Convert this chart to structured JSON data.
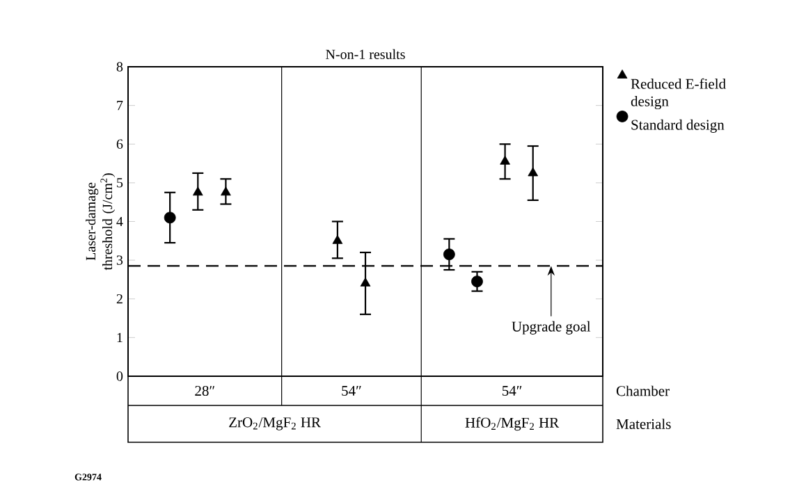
{
  "chart_data": {
    "type": "scatter",
    "title": "N-on-1 results",
    "ylabel": "Laser-damage threshold (J/cm$^{2}$)",
    "categories": [
      null,
      null,
      null,
      null,
      null,
      null,
      null,
      null,
      null,
      null,
      null,
      null,
      null,
      null,
      null,
      null,
      null
    ],
    "ylim": [
      0,
      8
    ],
    "yticks": [
      0,
      1,
      2,
      3,
      4,
      5,
      6,
      7,
      8
    ],
    "tick_labels": "y",
    "legend": "top right",
    "series": [
      {
        "name": "Reduced E-field design",
        "color": "#000000",
        "marker": "triangle",
        "values": [
          null,
          null,
          4.75,
          4.75,
          null,
          null,
          null,
          3.5,
          2.4,
          null,
          null,
          null,
          null,
          5.55,
          5.25,
          null,
          null
        ],
        "errors": [
          null,
          null,
          [
            4.3,
            5.25
          ],
          [
            4.45,
            5.1
          ],
          null,
          null,
          null,
          [
            3.05,
            4.0
          ],
          [
            1.6,
            3.2
          ],
          null,
          null,
          null,
          null,
          [
            5.1,
            6.0
          ],
          [
            4.55,
            5.95
          ],
          null,
          null
        ]
      },
      {
        "name": "Standard design",
        "color": "#000000",
        "marker": "circle",
        "values": [
          null,
          4.1,
          null,
          null,
          null,
          null,
          null,
          null,
          null,
          null,
          null,
          3.15,
          2.45,
          null,
          null,
          null,
          null
        ],
        "errors": [
          null,
          [
            3.45,
            4.75
          ],
          null,
          null,
          null,
          null,
          null,
          null,
          null,
          null,
          null,
          [
            2.75,
            3.55
          ],
          [
            2.2,
            2.7
          ],
          null,
          null,
          null,
          null
        ]
      }
    ],
    "ref_lines": [
      {
        "axis": "y",
        "value": 2.85,
        "label": "Upgrade goal",
        "color": "#000000",
        "line_style": "dashed"
      }
    ],
    "annotations": [
      "28″",
      "54″",
      "54″",
      "Chamber",
      "ZrO$_{2}$/MgF$_{2}$ HR",
      "HfO$_{2}$/MgF$_{2}$ HR",
      "Materials",
      "G2974"
    ]
  }
}
